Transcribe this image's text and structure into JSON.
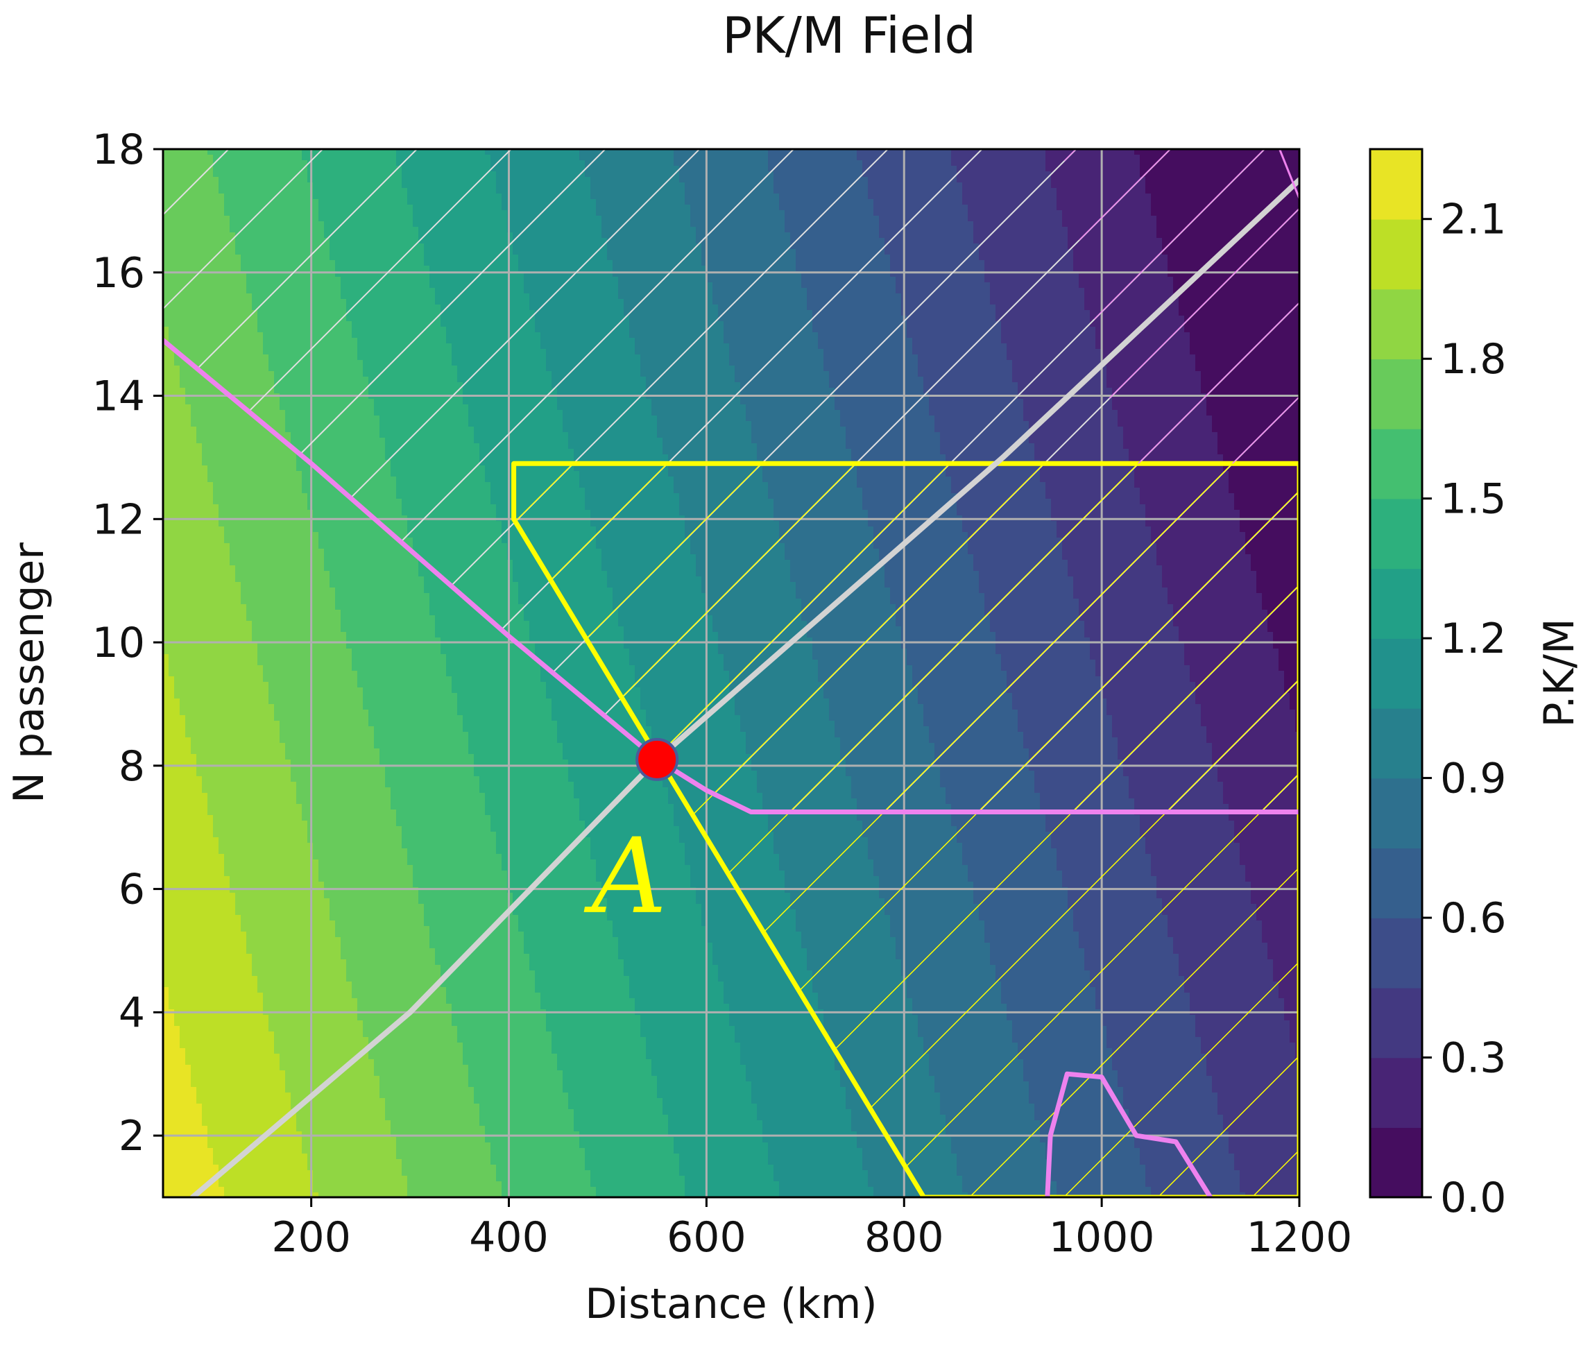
{
  "chart_data": {
    "type": "filled-contour",
    "title": "PK/M Field",
    "xlabel": "Distance (km)",
    "ylabel": "N passenger",
    "xlim": [
      50,
      1200
    ],
    "ylim": [
      1,
      18
    ],
    "grid": true,
    "x_ticks": [
      "200",
      "400",
      "600",
      "800",
      "1000",
      "1200"
    ],
    "x_tick_values": [
      200,
      400,
      600,
      800,
      1000,
      1200
    ],
    "y_ticks": [
      "2",
      "4",
      "6",
      "8",
      "10",
      "12",
      "14",
      "16",
      "18"
    ],
    "y_tick_values": [
      2,
      4,
      6,
      8,
      10,
      12,
      14,
      16,
      18
    ],
    "colorbar": {
      "label": "P.K/M",
      "ticks": [
        "0.0",
        "0.3",
        "0.6",
        "0.9",
        "1.2",
        "1.5",
        "1.8",
        "2.1"
      ],
      "tick_values": [
        0.0,
        0.3,
        0.6,
        0.9,
        1.2,
        1.5,
        1.8,
        2.1
      ],
      "range": [
        0.0,
        2.25
      ],
      "levels": 15,
      "colormap": "viridis"
    },
    "field_approx": {
      "description": "PK/M decreases with distance and with passengers",
      "value_at_origin_corner": 2.2,
      "gradient_per_km": -0.0016,
      "gradient_per_passenger": -0.028,
      "reference_point": [
        50,
        1
      ]
    },
    "lines": [
      {
        "name": "grey diagonal",
        "color": "#d3d3d3",
        "points": [
          [
            80,
            1
          ],
          [
            300,
            4
          ],
          [
            550,
            8.1
          ],
          [
            900,
            13
          ],
          [
            1200,
            17.5
          ]
        ]
      },
      {
        "name": "violet boundary",
        "color": "#ee82ee",
        "points": [
          [
            50,
            14.9
          ],
          [
            200,
            12.9
          ],
          [
            400,
            10.1
          ],
          [
            550,
            8.1
          ],
          [
            600,
            7.6
          ],
          [
            645,
            7.25
          ],
          [
            1200,
            7.25
          ]
        ]
      },
      {
        "name": "violet pocket",
        "color": "#ee82ee",
        "points": [
          [
            945,
            1
          ],
          [
            948,
            2
          ],
          [
            965,
            3
          ],
          [
            1000,
            2.95
          ],
          [
            1035,
            2
          ],
          [
            1075,
            1.9
          ],
          [
            1110,
            1
          ]
        ]
      },
      {
        "name": "violet upper-right edge",
        "color": "#ee82ee",
        "points": [
          [
            1180,
            18
          ],
          [
            1200,
            17.2
          ]
        ]
      }
    ],
    "regions": [
      {
        "name": "white-hatched region",
        "hatch_color": "#e0e0e0",
        "polygon": [
          [
            50,
            14.9
          ],
          [
            200,
            12.9
          ],
          [
            400,
            10.1
          ],
          [
            550,
            8.1
          ],
          [
            600,
            7.6
          ],
          [
            645,
            7.25
          ],
          [
            1200,
            7.25
          ],
          [
            1200,
            18
          ],
          [
            50,
            18
          ]
        ]
      },
      {
        "name": "yellow region",
        "color": "#ffff00",
        "polygon": [
          [
            405,
            12.9
          ],
          [
            1200,
            12.9
          ],
          [
            1200,
            1
          ],
          [
            820,
            1
          ],
          [
            405,
            12
          ]
        ]
      },
      {
        "name": "violet-hatched region",
        "hatch_color": "#ee82ee",
        "polygon": [
          [
            960,
            18
          ],
          [
            1200,
            18
          ],
          [
            1200,
            12.9
          ],
          [
            1020,
            12.9
          ]
        ]
      }
    ],
    "point": {
      "label": "A",
      "x": 550,
      "y": 8.1,
      "color": "#ff0000"
    }
  }
}
